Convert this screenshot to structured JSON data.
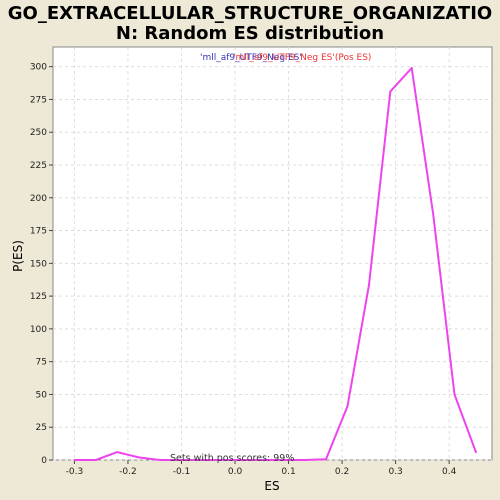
{
  "chart_data": {
    "type": "line",
    "title_lines": [
      "GO_EXTRACELLULAR_STRUCTURE_ORGANIZATIO",
      "N: Random ES distribution"
    ],
    "xlabel": "ES",
    "ylabel": "P(ES)",
    "xlim": [
      -0.34,
      0.48
    ],
    "ylim": [
      0,
      315
    ],
    "xticks": [
      -0.3,
      -0.2,
      -0.1,
      0.0,
      0.1,
      0.2,
      0.3,
      0.4
    ],
    "xtick_labels": [
      "-0.3",
      "-0.2",
      "-0.1",
      "0.0",
      "0.1",
      "0.2",
      "0.3",
      "0.4"
    ],
    "yticks": [
      0,
      25,
      50,
      75,
      100,
      125,
      150,
      175,
      200,
      225,
      250,
      275,
      300
    ],
    "grid": true,
    "legend": {
      "placement": "top-center",
      "neg_label": "'mll_af9_UTF9_Neg ES'",
      "neg_color": "#3333bb",
      "pos_label": "'mll_af9_UTF9_Neg ES'(Pos ES)",
      "pos_color": "#ee3333"
    },
    "series": [
      {
        "color": "#ee44ee",
        "x": [
          -0.3,
          -0.26,
          -0.22,
          -0.18,
          -0.14,
          -0.1,
          -0.06,
          -0.02,
          0.02,
          0.06,
          0.1,
          0.13,
          0.17,
          0.21,
          0.25,
          0.29,
          0.33,
          0.37,
          0.41,
          0.45
        ],
        "y": [
          0,
          0,
          6,
          2,
          0,
          0,
          0,
          0,
          0,
          0,
          0,
          0,
          0.5,
          41,
          133,
          281,
          299,
          188,
          50,
          6
        ]
      }
    ],
    "annotation": "Sets with pos scores: 99%"
  }
}
